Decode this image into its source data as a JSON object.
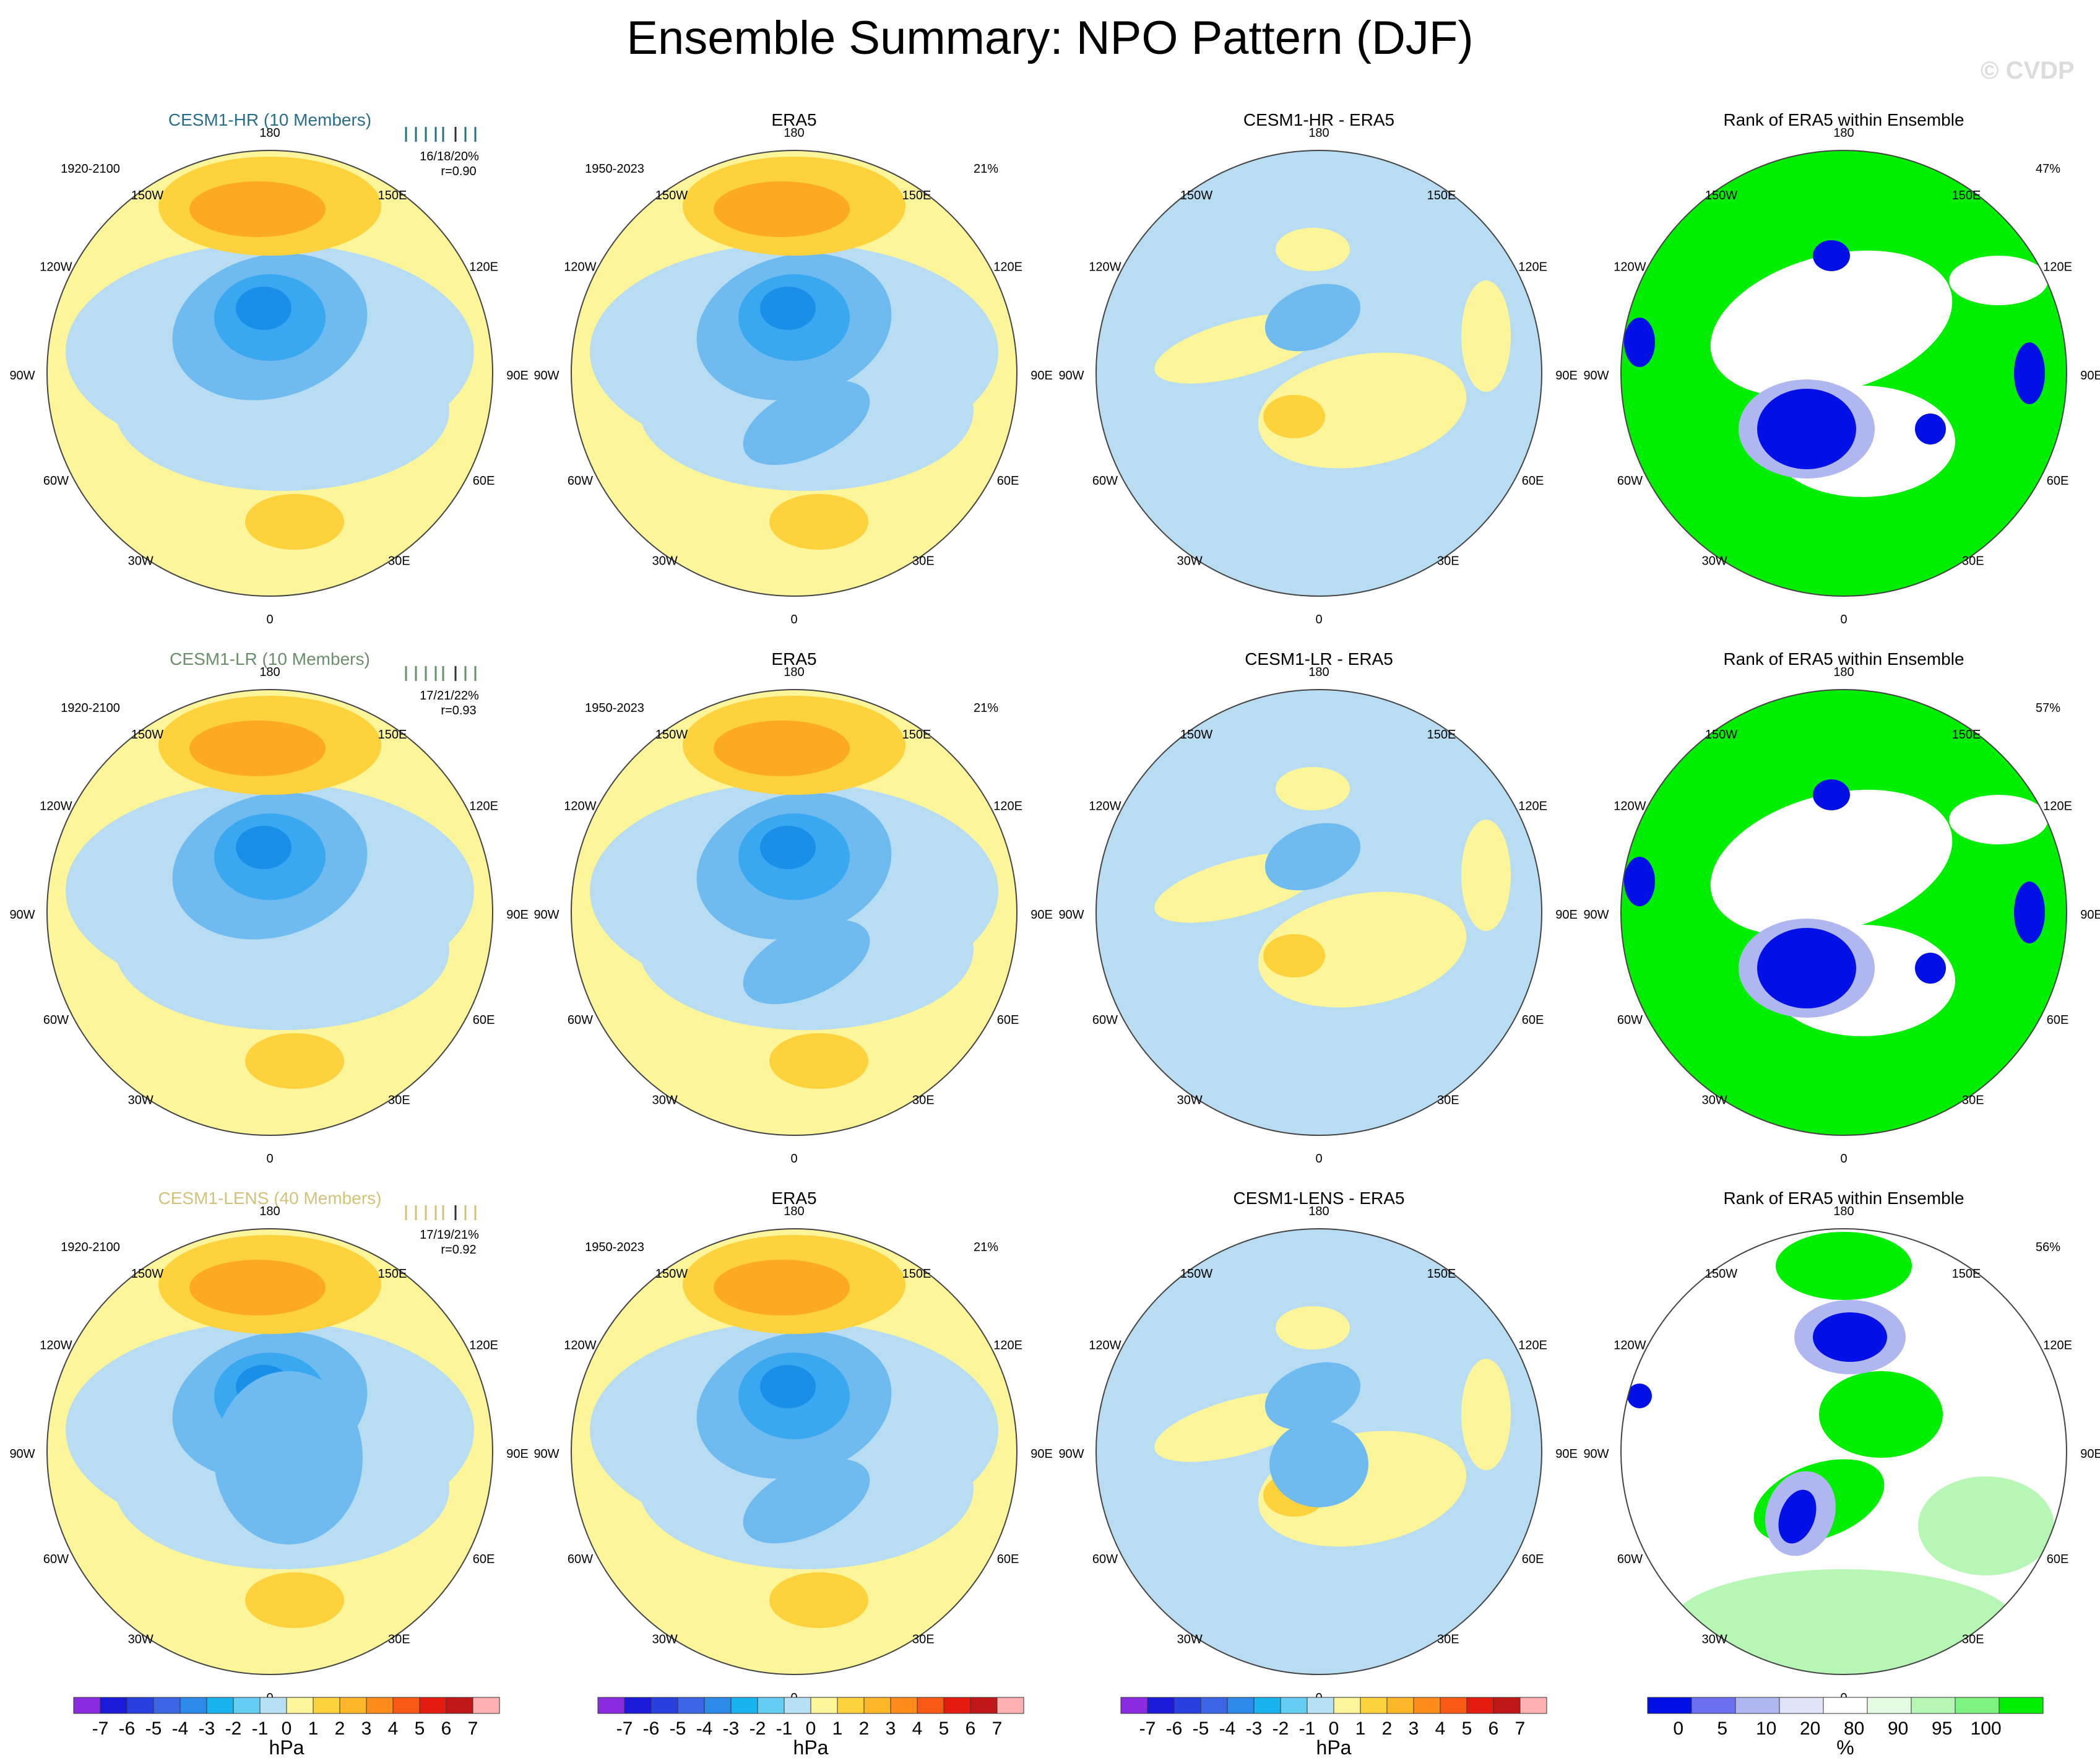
{
  "title": "Ensemble Summary: NPO Pattern (DJF)",
  "watermark": "© CVDP",
  "colors": {
    "hr_title": "#2a6f8a",
    "lr_title": "#6a8f6a",
    "lens_title": "#d2c27a",
    "coast": "#888888",
    "ocean_bg": "#ffffff",
    "pos1": "#fdf59a",
    "pos2": "#fdd23c",
    "pos3": "#fdaa20",
    "neg1": "#b8dcf2",
    "neg2": "#6fbbef",
    "neg3": "#3aa8f0",
    "neg4": "#1a8fe8",
    "rank_green": "#00ee00",
    "rank_lightgreen": "#b6f7b6",
    "rank_blue": "#0010e6",
    "rank_lavender": "#b0b6f0",
    "rank_white": "#ffffff"
  },
  "lon_labels": {
    "top": "180",
    "bottom": "0",
    "upper_left": "150W",
    "upper_right": "150E",
    "mid_upper_left": "120W",
    "mid_upper_right": "120E",
    "left": "90W",
    "right": "90E",
    "mid_lower_left": "60W",
    "mid_lower_right": "60E",
    "lower_left": "30W",
    "lower_right": "30E"
  },
  "rows": [
    {
      "model_title": "CESM1-HR (10 Members)",
      "model_years": "1920-2100",
      "model_stats": "16/18/20%",
      "model_r": "r=0.90",
      "obs_title": "ERA5",
      "obs_years": "1950-2023",
      "obs_pct": "21%",
      "diff_title": "CESM1-HR - ERA5",
      "rank_title": "Rank of ERA5 within Ensemble",
      "rank_pct": "47%"
    },
    {
      "model_title": "CESM1-LR (10 Members)",
      "model_years": "1920-2100",
      "model_stats": "17/21/22%",
      "model_r": "r=0.93",
      "obs_title": "ERA5",
      "obs_years": "1950-2023",
      "obs_pct": "21%",
      "diff_title": "CESM1-LR - ERA5",
      "rank_title": "Rank of ERA5 within Ensemble",
      "rank_pct": "57%"
    },
    {
      "model_title": "CESM1-LENS (40 Members)",
      "model_years": "1920-2100",
      "model_stats": "17/19/21%",
      "model_r": "r=0.92",
      "obs_title": "ERA5",
      "obs_years": "1950-2023",
      "obs_pct": "21%",
      "diff_title": "CESM1-LENS - ERA5",
      "rank_title": "Rank of ERA5 within Ensemble",
      "rank_pct": "56%"
    }
  ],
  "hpa_colorbar": {
    "label": "hPa",
    "tick_labels": [
      "-7",
      "-6",
      "-5",
      "-4",
      "-3",
      "-2",
      "-1",
      "0",
      "1",
      "2",
      "3",
      "4",
      "5",
      "6",
      "7"
    ],
    "colors": [
      "#8a2be2",
      "#1a1ad8",
      "#2840e0",
      "#3a66e6",
      "#2c8ae8",
      "#18b4f0",
      "#64cdf2",
      "#b8e0f4",
      "#fdf59a",
      "#fdd23c",
      "#fdb82a",
      "#fd8c1a",
      "#f85a14",
      "#e41c10",
      "#c01818",
      "#ffb0b0"
    ]
  },
  "rank_colorbar": {
    "label": "%",
    "tick_labels": [
      "0",
      "5",
      "10",
      "20",
      "80",
      "90",
      "95",
      "100"
    ],
    "colors": [
      "#0010e6",
      "#6a70f0",
      "#b0b6f0",
      "#e0e2f8",
      "#ffffff",
      "#e4fbe4",
      "#b6f7b6",
      "#7ef27e",
      "#00ee00"
    ]
  }
}
